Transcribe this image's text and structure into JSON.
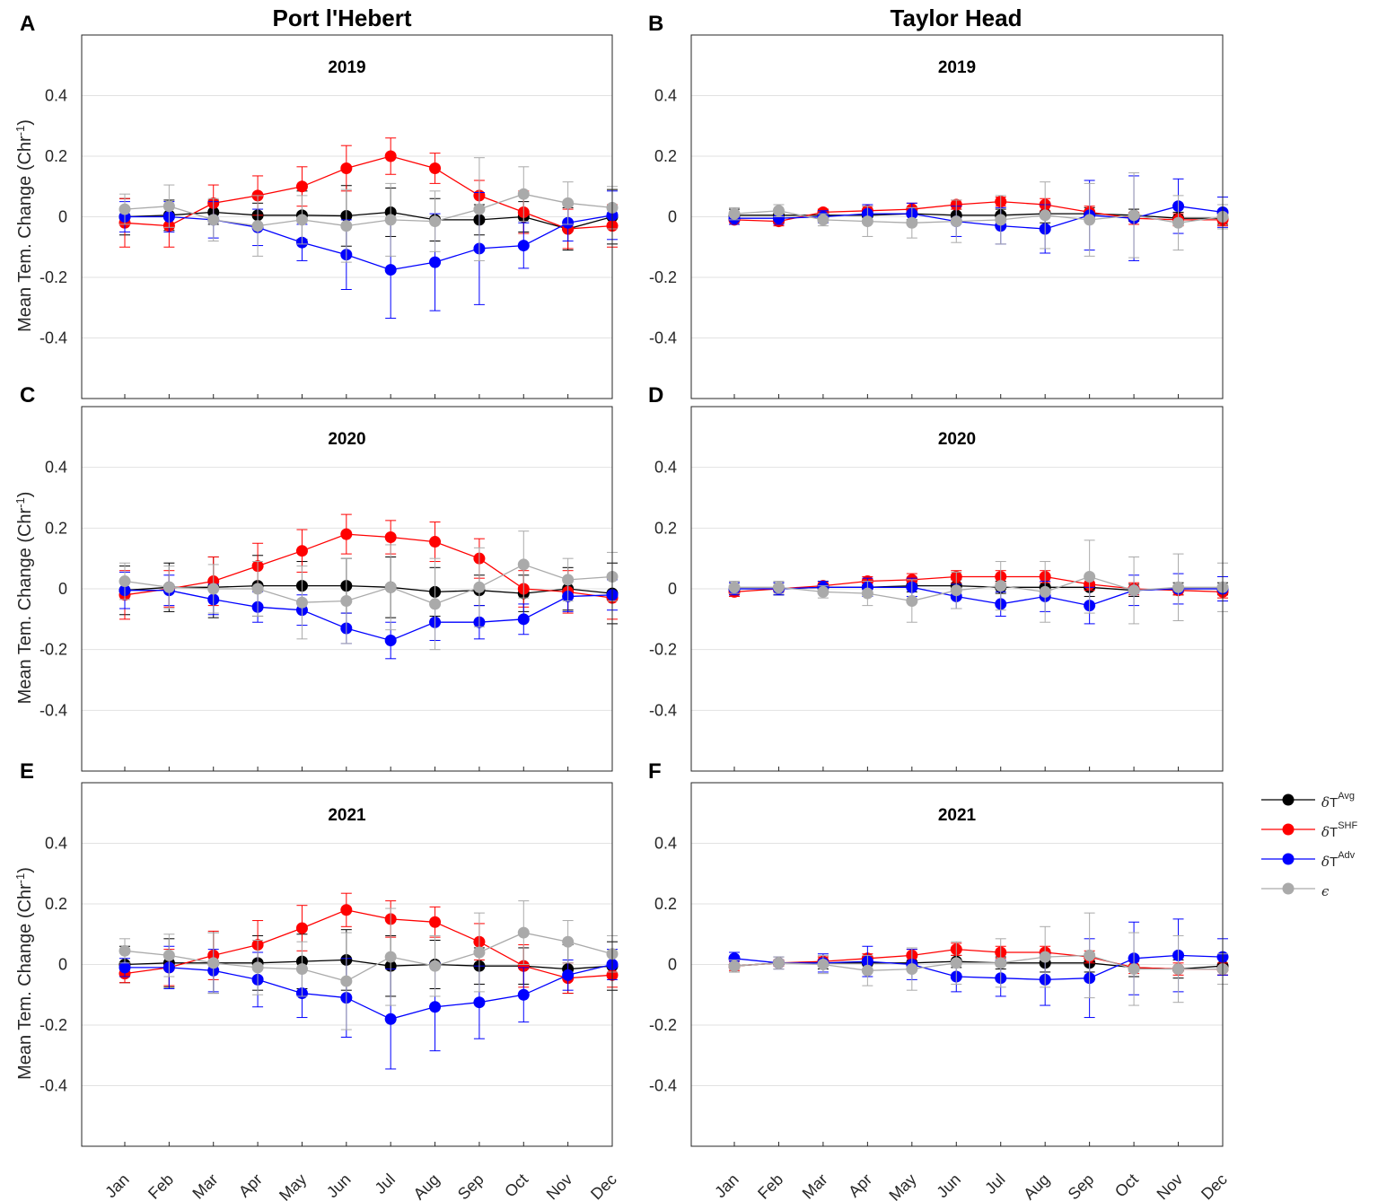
{
  "column_titles": [
    "Port l'Hebert",
    "Taylor Head"
  ],
  "legend": [
    {
      "key": "avg",
      "sym": "δ",
      "base": "T",
      "sup": "Avg",
      "color": "#000000"
    },
    {
      "key": "shf",
      "sym": "δ",
      "base": "T",
      "sup": "SHF",
      "color": "#ff0000"
    },
    {
      "key": "adv",
      "sym": "δ",
      "base": "T",
      "sup": "Adv",
      "color": "#0000ff"
    },
    {
      "key": "eps",
      "sym": "ϵ",
      "base": "",
      "sup": "",
      "color": "#aaaaaa"
    }
  ],
  "chart_data": [
    {
      "type": "line",
      "panel": "A",
      "site": "Port l'Hebert",
      "title": "2019",
      "ylabel": "Mean Tem. Change (Chr^-1)",
      "ylim": [
        -0.6,
        0.6
      ],
      "yticks": [
        "0.4",
        "0.2",
        "0",
        "-0.2",
        "-0.4"
      ],
      "categories": [
        "Jan",
        "Feb",
        "Mar",
        "Apr",
        "May",
        "Jun",
        "Jul",
        "Aug",
        "Sep",
        "Oct",
        "Nov",
        "Dec"
      ],
      "series": [
        {
          "name": "avg",
          "values": [
            0,
            0.005,
            0.015,
            0.005,
            0.005,
            0.003,
            0.015,
            -0.01,
            -0.01,
            0,
            -0.04,
            0
          ],
          "err": [
            0.06,
            0.05,
            0.04,
            0.04,
            0.08,
            0.1,
            0.08,
            0.07,
            0.05,
            0.05,
            0.07,
            0.09
          ]
        },
        {
          "name": "shf",
          "values": [
            -0.02,
            -0.03,
            0.045,
            0.07,
            0.1,
            0.16,
            0.2,
            0.16,
            0.07,
            0.015,
            -0.04,
            -0.03
          ],
          "err": [
            0.08,
            0.07,
            0.06,
            0.065,
            0.065,
            0.075,
            0.06,
            0.05,
            0.05,
            0.07,
            0.065,
            0.07
          ]
        },
        {
          "name": "adv",
          "values": [
            0,
            0,
            -0.01,
            -0.035,
            -0.085,
            -0.125,
            -0.175,
            -0.15,
            -0.105,
            -0.095,
            -0.02,
            0.005
          ],
          "err": [
            0.05,
            0.05,
            0.06,
            0.06,
            0.06,
            0.115,
            0.16,
            0.16,
            0.185,
            0.075,
            0.06,
            0.08
          ]
        },
        {
          "name": "eps",
          "values": [
            0.025,
            0.035,
            -0.01,
            -0.03,
            -0.01,
            -0.03,
            -0.01,
            -0.015,
            0.025,
            0.075,
            0.045,
            0.03
          ],
          "err": [
            0.05,
            0.07,
            0.07,
            0.1,
            0.08,
            0.12,
            0.12,
            0.1,
            0.17,
            0.09,
            0.07,
            0.07
          ]
        }
      ]
    },
    {
      "type": "line",
      "panel": "B",
      "site": "Taylor Head",
      "title": "2019",
      "ylim": [
        -0.6,
        0.6
      ],
      "yticks": [
        "0.4",
        "0.2",
        "0",
        "-0.2",
        "-0.4"
      ],
      "categories": [
        "Jan",
        "Feb",
        "Mar",
        "Apr",
        "May",
        "Jun",
        "Jul",
        "Aug",
        "Sep",
        "Oct",
        "Nov",
        "Dec"
      ],
      "series": [
        {
          "name": "avg",
          "values": [
            0.005,
            0.005,
            0.005,
            0.005,
            0.01,
            0.005,
            0.005,
            0.01,
            0.01,
            0.005,
            -0.005,
            -0.005
          ],
          "err": [
            0.02,
            0.02,
            0.02,
            0.02,
            0.02,
            0.02,
            0.02,
            0.03,
            0.02,
            0.02,
            0.02,
            0.02
          ]
        },
        {
          "name": "shf",
          "values": [
            -0.01,
            -0.015,
            0.015,
            0.02,
            0.025,
            0.04,
            0.05,
            0.04,
            0.015,
            -0.005,
            -0.01,
            -0.01
          ],
          "err": [
            0.015,
            0.015,
            0.01,
            0.015,
            0.02,
            0.015,
            0.015,
            0.02,
            0.02,
            0.02,
            0.02,
            0.02
          ]
        },
        {
          "name": "adv",
          "values": [
            -0.005,
            -0.005,
            0,
            0.01,
            0.01,
            -0.015,
            -0.03,
            -0.04,
            0.005,
            -0.005,
            0.035,
            0.015
          ],
          "err": [
            0.02,
            0.02,
            0.02,
            0.03,
            0.035,
            0.05,
            0.06,
            0.08,
            0.115,
            0.14,
            0.09,
            0.05
          ]
        },
        {
          "name": "eps",
          "values": [
            0.01,
            0.02,
            -0.01,
            -0.015,
            -0.02,
            -0.015,
            -0.01,
            0.005,
            -0.01,
            0.005,
            -0.02,
            0
          ],
          "err": [
            0.02,
            0.02,
            0.02,
            0.05,
            0.05,
            0.07,
            0.08,
            0.11,
            0.12,
            0.14,
            0.09,
            0.04
          ]
        }
      ]
    },
    {
      "type": "line",
      "panel": "C",
      "site": "Port l'Hebert",
      "title": "2020",
      "ylabel": "Mean Tem. Change (Chr^-1)",
      "ylim": [
        -0.6,
        0.6
      ],
      "yticks": [
        "0.4",
        "0.2",
        "0",
        "-0.2",
        "-0.4"
      ],
      "categories": [
        "Jan",
        "Feb",
        "Mar",
        "Apr",
        "May",
        "Jun",
        "Jul",
        "Aug",
        "Sep",
        "Oct",
        "Nov",
        "Dec"
      ],
      "series": [
        {
          "name": "avg",
          "values": [
            -0.005,
            0.005,
            0.005,
            0.01,
            0.01,
            0.01,
            0.005,
            -0.01,
            -0.005,
            -0.015,
            0,
            -0.015
          ],
          "err": [
            0.08,
            0.08,
            0.1,
            0.1,
            0.08,
            0.09,
            0.1,
            0.08,
            0.05,
            0.06,
            0.07,
            0.1
          ]
        },
        {
          "name": "shf",
          "values": [
            -0.02,
            0,
            0.025,
            0.075,
            0.125,
            0.18,
            0.17,
            0.155,
            0.1,
            0,
            -0.01,
            -0.03
          ],
          "err": [
            0.08,
            0.06,
            0.08,
            0.075,
            0.07,
            0.065,
            0.055,
            0.065,
            0.065,
            0.06,
            0.07,
            0.07
          ]
        },
        {
          "name": "adv",
          "values": [
            -0.005,
            -0.005,
            -0.035,
            -0.06,
            -0.07,
            -0.13,
            -0.17,
            -0.11,
            -0.11,
            -0.1,
            -0.025,
            -0.02
          ],
          "err": [
            0.06,
            0.05,
            0.05,
            0.05,
            0.05,
            0.05,
            0.06,
            0.06,
            0.055,
            0.05,
            0.05,
            0.05
          ]
        },
        {
          "name": "eps",
          "values": [
            0.025,
            0.005,
            0,
            0,
            -0.045,
            -0.04,
            0.005,
            -0.05,
            0.005,
            0.08,
            0.03,
            0.04
          ],
          "err": [
            0.06,
            0.07,
            0.08,
            0.09,
            0.12,
            0.14,
            0.14,
            0.15,
            0.13,
            0.11,
            0.07,
            0.08
          ]
        }
      ]
    },
    {
      "type": "line",
      "panel": "D",
      "site": "Taylor Head",
      "title": "2020",
      "ylim": [
        -0.6,
        0.6
      ],
      "yticks": [
        "0.4",
        "0.2",
        "0",
        "-0.2",
        "-0.4"
      ],
      "categories": [
        "Jan",
        "Feb",
        "Mar",
        "Apr",
        "May",
        "Jun",
        "Jul",
        "Aug",
        "Sep",
        "Oct",
        "Nov",
        "Dec"
      ],
      "series": [
        {
          "name": "avg",
          "values": [
            0,
            0,
            0.005,
            0.005,
            0.01,
            0.01,
            0.005,
            0.005,
            0.005,
            -0.005,
            0,
            0
          ],
          "err": [
            0.02,
            0.02,
            0.02,
            0.02,
            0.02,
            0.02,
            0.02,
            0.03,
            0.03,
            0.02,
            0.02,
            0.02
          ]
        },
        {
          "name": "shf",
          "values": [
            -0.01,
            0,
            0.01,
            0.025,
            0.03,
            0.04,
            0.04,
            0.04,
            0.015,
            0,
            -0.005,
            -0.01
          ],
          "err": [
            0.015,
            0.01,
            0.01,
            0.015,
            0.02,
            0.02,
            0.02,
            0.02,
            0.02,
            0.02,
            0.015,
            0.02
          ]
        },
        {
          "name": "adv",
          "values": [
            0,
            0,
            0.005,
            0.005,
            0.005,
            -0.025,
            -0.05,
            -0.025,
            -0.055,
            -0.005,
            0,
            0
          ],
          "err": [
            0.02,
            0.02,
            0.02,
            0.03,
            0.03,
            0.04,
            0.04,
            0.05,
            0.06,
            0.05,
            0.05,
            0.04
          ]
        },
        {
          "name": "eps",
          "values": [
            0.005,
            0.005,
            -0.01,
            -0.015,
            -0.04,
            -0.005,
            0.01,
            -0.01,
            0.04,
            -0.005,
            0.005,
            0.005
          ],
          "err": [
            0.02,
            0.02,
            0.02,
            0.04,
            0.07,
            0.06,
            0.08,
            0.1,
            0.12,
            0.11,
            0.11,
            0.08
          ]
        }
      ]
    },
    {
      "type": "line",
      "panel": "E",
      "site": "Port l'Hebert",
      "title": "2021",
      "ylabel": "Mean Tem. Change (Chr^-1)",
      "ylim": [
        -0.6,
        0.6
      ],
      "yticks": [
        "0.4",
        "0.2",
        "0",
        "-0.2",
        "-0.4"
      ],
      "categories": [
        "Jan",
        "Feb",
        "Mar",
        "Apr",
        "May",
        "Jun",
        "Jul",
        "Aug",
        "Sep",
        "Oct",
        "Nov",
        "Dec"
      ],
      "series": [
        {
          "name": "avg",
          "values": [
            0,
            0.005,
            0.005,
            0.005,
            0.01,
            0.015,
            -0.005,
            0,
            -0.005,
            -0.005,
            -0.015,
            -0.005
          ],
          "err": [
            0.06,
            0.08,
            0.1,
            0.09,
            0.09,
            0.1,
            0.1,
            0.08,
            0.06,
            0.06,
            0.08,
            0.08
          ]
        },
        {
          "name": "shf",
          "values": [
            -0.03,
            -0.01,
            0.03,
            0.065,
            0.12,
            0.18,
            0.15,
            0.14,
            0.075,
            -0.005,
            -0.045,
            -0.035
          ],
          "err": [
            0.03,
            0.06,
            0.08,
            0.08,
            0.075,
            0.055,
            0.06,
            0.05,
            0.06,
            0.07,
            0.05,
            0.04
          ]
        },
        {
          "name": "adv",
          "values": [
            -0.01,
            -0.01,
            -0.02,
            -0.05,
            -0.095,
            -0.11,
            -0.18,
            -0.14,
            -0.125,
            -0.1,
            -0.035,
            0
          ],
          "err": [
            0.03,
            0.07,
            0.07,
            0.09,
            0.08,
            0.13,
            0.165,
            0.145,
            0.12,
            0.09,
            0.05,
            0.05
          ]
        },
        {
          "name": "eps",
          "values": [
            0.045,
            0.03,
            0.005,
            -0.01,
            -0.015,
            -0.055,
            0.025,
            -0.005,
            0.04,
            0.105,
            0.075,
            0.035
          ],
          "err": [
            0.04,
            0.07,
            0.1,
            0.09,
            0.09,
            0.16,
            0.16,
            0.1,
            0.13,
            0.105,
            0.07,
            0.06
          ]
        }
      ]
    },
    {
      "type": "line",
      "panel": "F",
      "site": "Taylor Head",
      "title": "2021",
      "ylim": [
        -0.6,
        0.6
      ],
      "yticks": [
        "0.4",
        "0.2",
        "0",
        "-0.2",
        "-0.4"
      ],
      "categories": [
        "Jan",
        "Feb",
        "Mar",
        "Apr",
        "May",
        "Jun",
        "Jul",
        "Aug",
        "Sep",
        "Oct",
        "Nov",
        "Dec"
      ],
      "series": [
        {
          "name": "avg",
          "values": [
            -0.005,
            0.005,
            0.005,
            0.005,
            0.005,
            0.01,
            0.005,
            0.005,
            0.005,
            -0.01,
            -0.015,
            -0.005
          ],
          "err": [
            0.02,
            0.02,
            0.02,
            0.02,
            0.02,
            0.02,
            0.02,
            0.03,
            0.03,
            0.03,
            0.03,
            0.03
          ]
        },
        {
          "name": "shf",
          "values": [
            -0.005,
            0.005,
            0.01,
            0.02,
            0.03,
            0.05,
            0.04,
            0.04,
            0.025,
            -0.01,
            -0.015,
            -0.015
          ],
          "err": [
            0.015,
            0.01,
            0.015,
            0.015,
            0.02,
            0.02,
            0.02,
            0.02,
            0.02,
            0.02,
            0.02,
            0.02
          ]
        },
        {
          "name": "adv",
          "values": [
            0.02,
            0.005,
            0.005,
            0.01,
            0,
            -0.04,
            -0.045,
            -0.05,
            -0.045,
            0.02,
            0.03,
            0.025
          ],
          "err": [
            0.02,
            0.02,
            0.03,
            0.05,
            0.05,
            0.05,
            0.06,
            0.085,
            0.13,
            0.12,
            0.12,
            0.06
          ]
        },
        {
          "name": "eps",
          "values": [
            -0.005,
            0.005,
            0,
            -0.02,
            -0.015,
            0.005,
            0.005,
            0.025,
            0.03,
            -0.015,
            -0.015,
            -0.015
          ],
          "err": [
            0.02,
            0.02,
            0.03,
            0.05,
            0.07,
            0.07,
            0.08,
            0.1,
            0.14,
            0.12,
            0.11,
            0.05
          ]
        }
      ]
    }
  ]
}
